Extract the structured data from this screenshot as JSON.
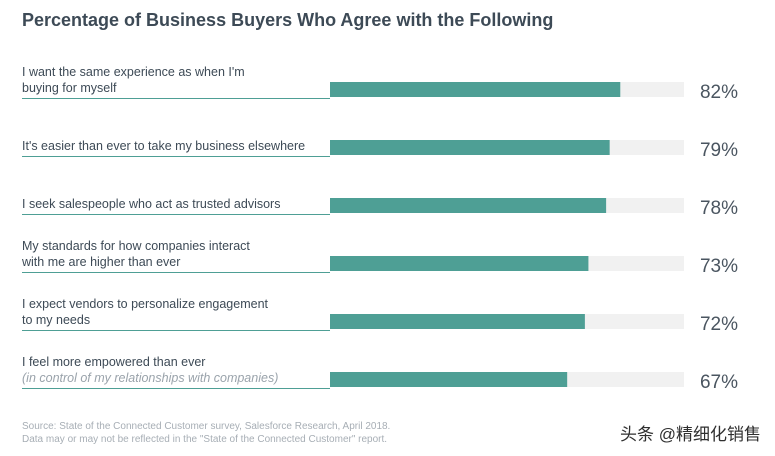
{
  "colors": {
    "bar": "#4e9f95",
    "track": "#f1f1f1",
    "line": "#4e9f95"
  },
  "chart_data": {
    "type": "bar",
    "orientation": "horizontal",
    "title": "Percentage of Business Buyers Who Agree with the Following",
    "xlim": [
      0,
      100
    ],
    "categories": [
      {
        "lines": [
          "I want the same experience as when I'm",
          "buying for myself"
        ],
        "sub": ""
      },
      {
        "lines": [
          "It's easier than ever to take my business elsewhere"
        ],
        "sub": ""
      },
      {
        "lines": [
          "I seek salespeople who act as trusted advisors"
        ],
        "sub": ""
      },
      {
        "lines": [
          "My standards for how companies interact",
          "with me are higher than ever"
        ],
        "sub": ""
      },
      {
        "lines": [
          "I expect vendors to personalize engagement",
          "to my needs"
        ],
        "sub": ""
      },
      {
        "lines": [
          "I feel more empowered than ever"
        ],
        "sub": "(in control of my relationships with companies)"
      }
    ],
    "values": [
      82,
      79,
      78,
      73,
      72,
      67
    ],
    "value_labels": [
      "82%",
      "79%",
      "78%",
      "73%",
      "72%",
      "67%"
    ]
  },
  "footer": {
    "source_line1": "Source: State of the Connected Customer survey, Salesforce Research, April 2018.",
    "source_line2": "Data may or may not be reflected in the \"State of the Connected Customer\" report.",
    "watermark": "头条 @精细化销售"
  }
}
